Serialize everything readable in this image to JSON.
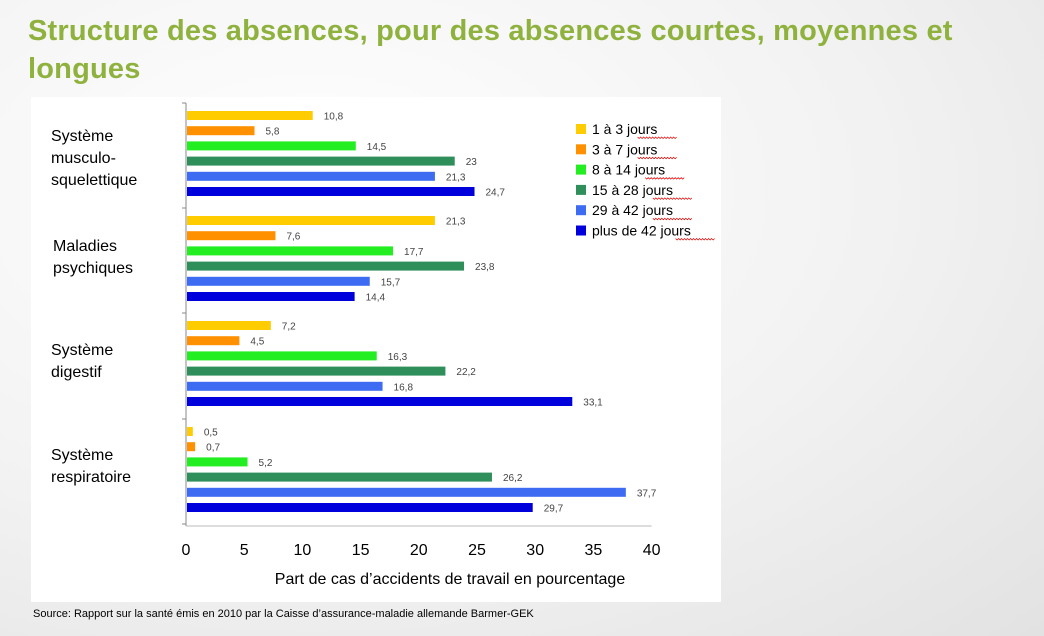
{
  "slide": {
    "title": "Structure des absences, pour des absences courtes, moyennes et longues",
    "source": "Source: Rapport sur la santé émis en 2010 par la Caisse d’assurance-maladie allemande Barmer-GEK"
  },
  "chart_data": {
    "type": "bar",
    "orientation": "horizontal",
    "categories": [
      [
        "Système",
        "musculo-",
        "squelettique"
      ],
      [
        "Maladies",
        "psychiques"
      ],
      [
        "Système",
        "digestif"
      ],
      [
        "Système",
        "respiratoire"
      ]
    ],
    "series": [
      {
        "name": "1 à 3 jours",
        "color": "#ffcc00",
        "values": [
          10.8,
          21.3,
          7.2,
          0.5
        ]
      },
      {
        "name": "3 à 7 jours",
        "color": "#ff9000",
        "values": [
          5.8,
          7.6,
          4.5,
          0.7
        ]
      },
      {
        "name": "8 à 14 jours",
        "color": "#22ee22",
        "values": [
          14.5,
          17.7,
          16.3,
          5.2
        ]
      },
      {
        "name": "15 à 28 jours",
        "color": "#2f8f5b",
        "values": [
          23,
          23.8,
          22.2,
          26.2
        ]
      },
      {
        "name": "29 à 42 jours",
        "color": "#3d6cf3",
        "values": [
          21.3,
          15.7,
          16.8,
          37.7
        ]
      },
      {
        "name": "plus de 42 jours",
        "color": "#0000dd",
        "values": [
          24.7,
          14.4,
          33.1,
          29.7
        ]
      }
    ],
    "value_labels": [
      [
        "10,8",
        "5,8",
        "14,5",
        "23",
        "21,3",
        "24,7"
      ],
      [
        "21,3",
        "7,6",
        "17,7",
        "23,8",
        "15,7",
        "14,4"
      ],
      [
        "7,2",
        "4,5",
        "16,3",
        "22,2",
        "16,8",
        "33,1"
      ],
      [
        "0,5",
        "0,7",
        "5,2",
        "26,2",
        "37,7",
        "29,7"
      ]
    ],
    "xlim": [
      0,
      40
    ],
    "xticks": [
      0,
      5,
      10,
      15,
      20,
      25,
      30,
      35,
      40
    ],
    "xlabel": "Part de cas d’accidents de travail en pourcentage",
    "ylabel": "",
    "grid": false,
    "legend_position": "top-right"
  }
}
